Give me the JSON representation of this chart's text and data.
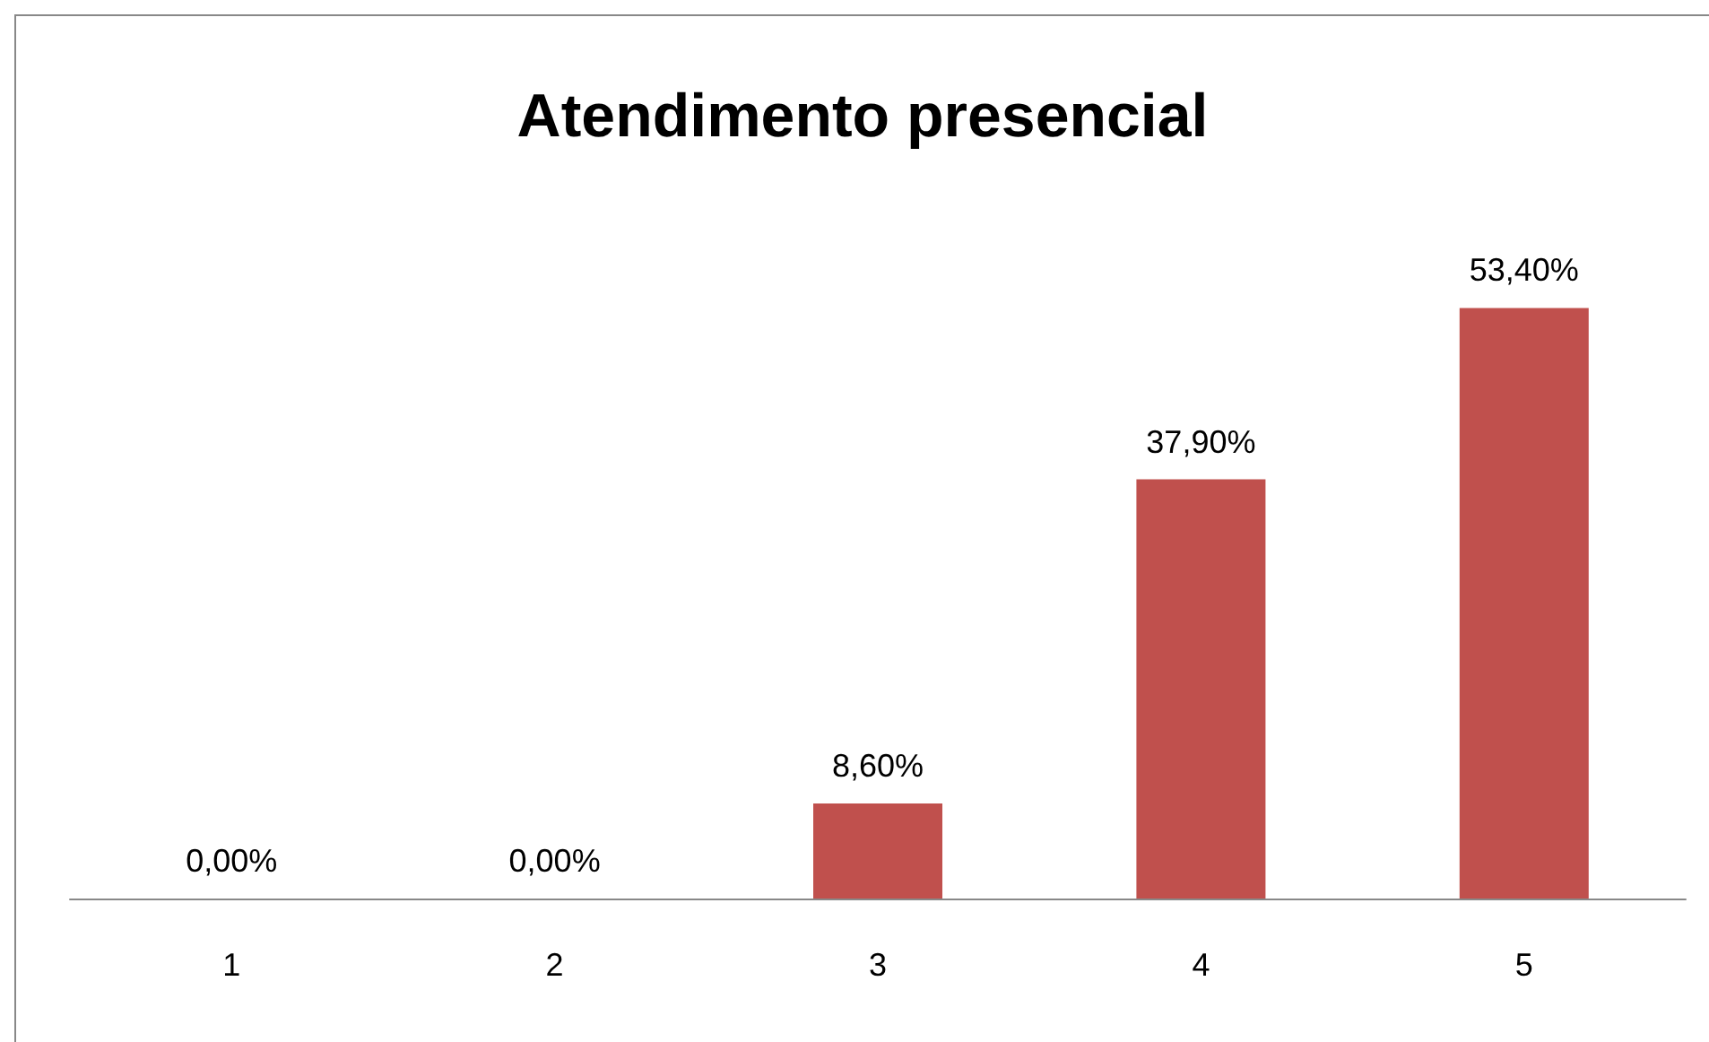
{
  "chart_data": {
    "type": "bar",
    "title": "Atendimento presencial",
    "categories": [
      "1",
      "2",
      "3",
      "4",
      "5"
    ],
    "values": [
      0,
      0,
      8.6,
      37.9,
      53.4
    ],
    "value_labels": [
      "0,00%",
      "0,00%",
      "8,60%",
      "37,90%",
      "53,40%"
    ],
    "color": "#c0504d"
  }
}
